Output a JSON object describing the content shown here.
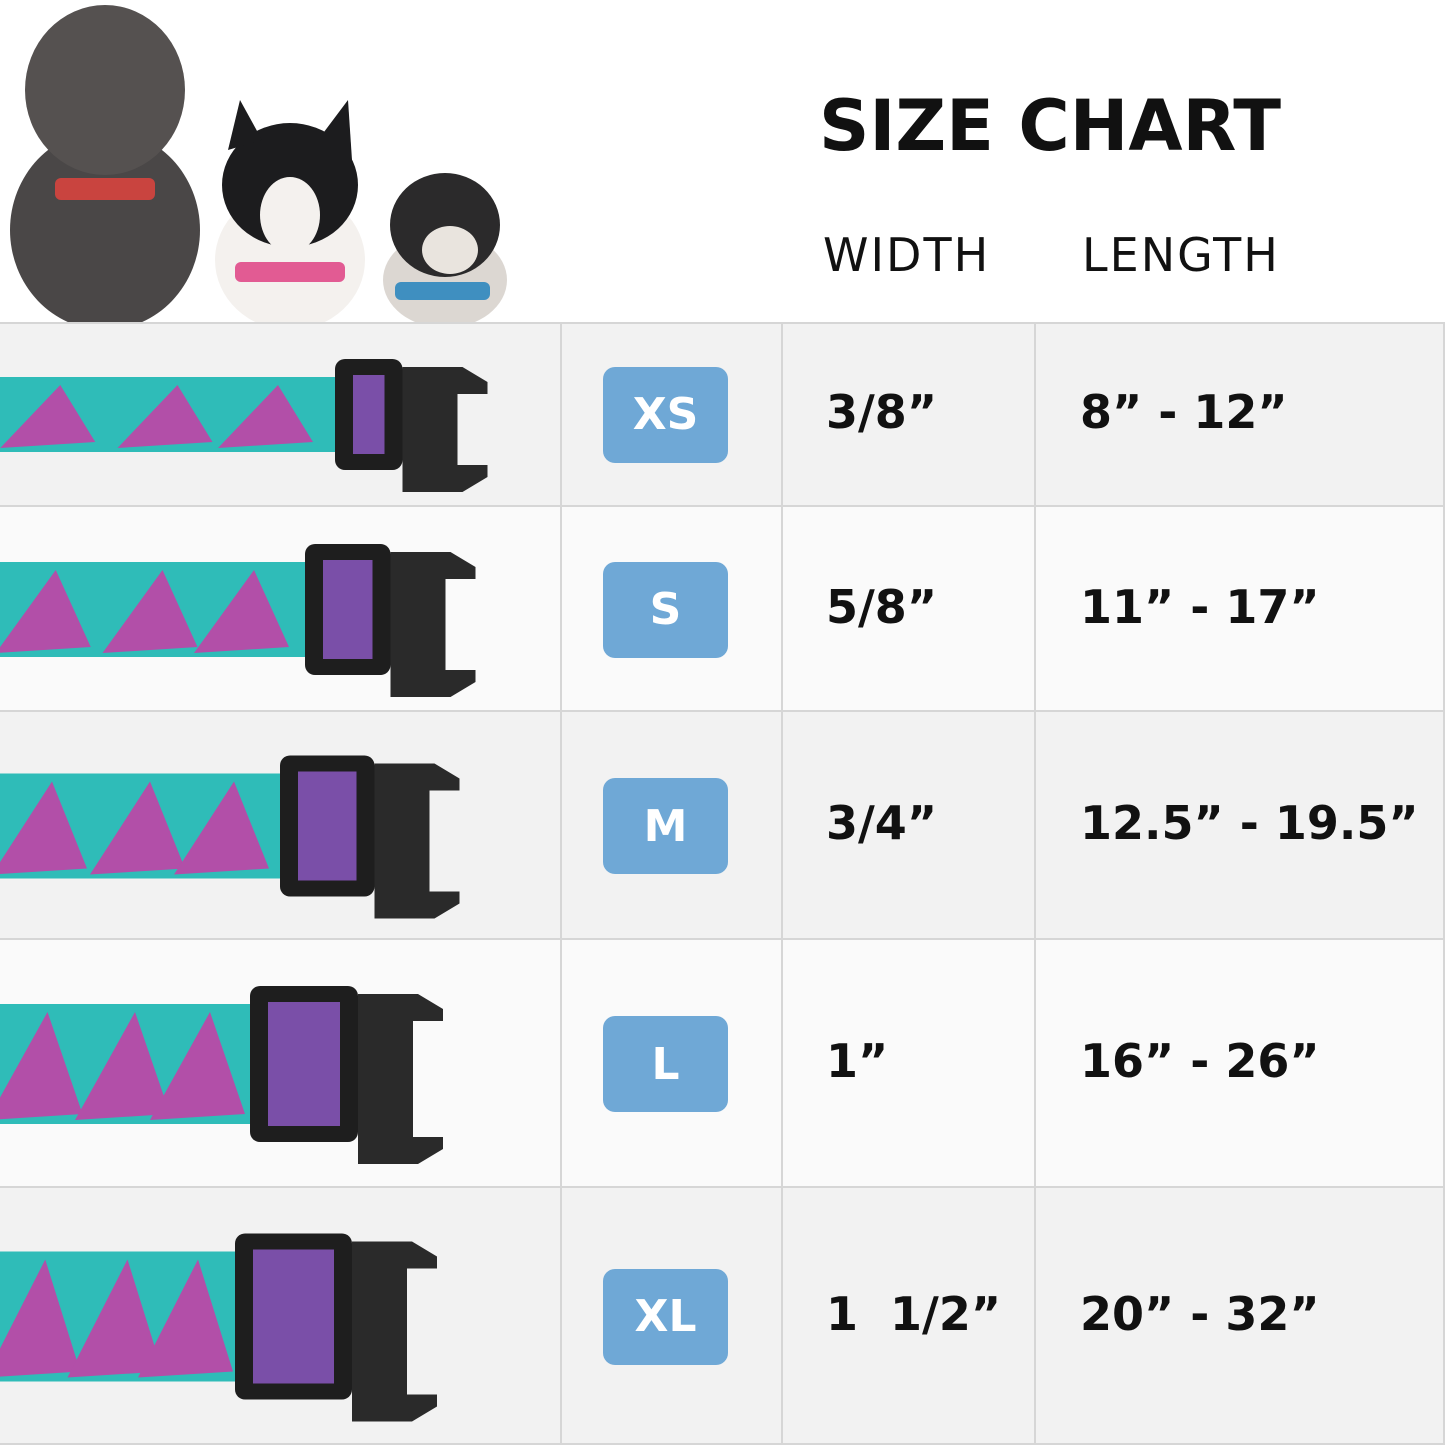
{
  "header": {
    "title": "SIZE CHART",
    "columns": [
      "WIDTH",
      "LENGTH"
    ]
  },
  "table": {
    "rows": [
      [
        "XS",
        "3/8”",
        "8” - 12”"
      ],
      [
        "S",
        "5/8”",
        "11” - 17”"
      ],
      [
        "M",
        "3/4”",
        "12.5” - 19.5”"
      ],
      [
        "L",
        "1”",
        "16” - 26”"
      ],
      [
        "XL",
        "1  1/2”",
        "20” - 32”"
      ]
    ]
  }
}
